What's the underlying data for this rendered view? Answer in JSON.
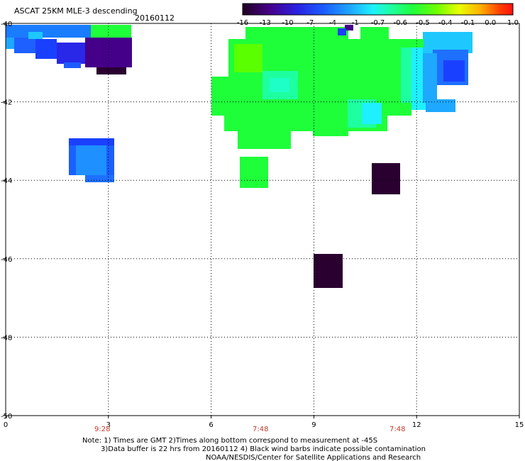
{
  "header": {
    "title": "ASCAT 25KM MLE-3 descending",
    "date": "20160112"
  },
  "colorbar": {
    "labels": [
      "-16",
      "-13",
      "-10",
      "-7",
      "-4",
      "-1",
      "-0.7",
      "-0.6",
      "-0.5",
      "-0.4",
      "-0.1",
      "0.0",
      "1.0"
    ],
    "colors": [
      "#2a0030",
      "#3d007a",
      "#3a18d6",
      "#1e50ff",
      "#1e9bff",
      "#1ee3ff",
      "#1eff9a",
      "#1eff3a",
      "#7cff00",
      "#d8ff00",
      "#ffb000",
      "#ff5000",
      "#ff1010"
    ]
  },
  "axes": {
    "x_ticks": [
      "0",
      "3",
      "6",
      "9",
      "12",
      "15"
    ],
    "y_ticks": [
      "-40",
      "-42",
      "-44",
      "-46",
      "-48",
      "-50"
    ],
    "x_range": [
      0,
      15
    ],
    "y_range": [
      -40,
      -50
    ]
  },
  "time_labels": [
    "9:28",
    "7:48",
    "7:48"
  ],
  "notes": {
    "line1": "Note: 1) Times are GMT 2)Times along bottom correspond to measurement at -45S",
    "line2": "3)Data buffer is 22 hrs from 20160112 4) Black wind barbs indicate possible contamination",
    "line3": "NOAA/NESDIS/Center for Satellite Applications and Research"
  },
  "legend_colors": {
    "dark": "#2a0030",
    "indigo": "#3d0080",
    "blue": "#1e3cff",
    "skyblue": "#1e8cff",
    "cyan": "#1ee3ff",
    "mint": "#1eff9a",
    "green": "#1eff3a",
    "lime": "#5aff00"
  }
}
